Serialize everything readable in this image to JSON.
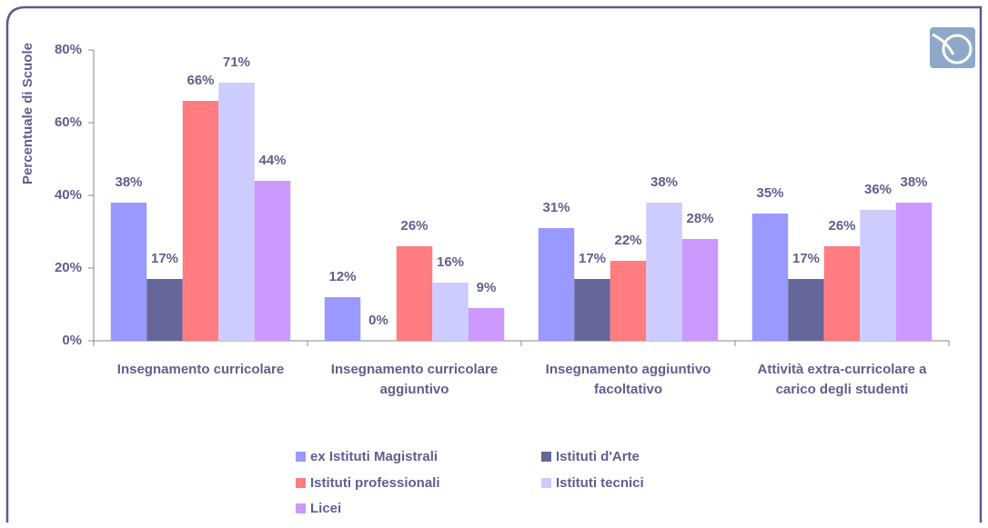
{
  "chart_data": {
    "type": "bar",
    "y_label": "Percentuale di Scuole",
    "categories": [
      "Insegnamento curricolare",
      "Insegnamento curricolare aggiuntivo",
      "Insegnamento aggiuntivo facoltativo",
      "Attività extra-curricolare a carico degli studenti"
    ],
    "series": [
      {
        "name": "ex Istituti Magistrali",
        "color": "#9999ff",
        "values": [
          38,
          12,
          31,
          35
        ],
        "value_labels": [
          "38%",
          "12%",
          "31%",
          "35%"
        ]
      },
      {
        "name": "Istituti d'Arte",
        "color": "#666699",
        "values": [
          17,
          0,
          17,
          17
        ],
        "value_labels": [
          "17%",
          "0%",
          "17%",
          "17%"
        ]
      },
      {
        "name": "Istituti professionali",
        "color": "#ff7c80",
        "values": [
          66,
          26,
          22,
          26
        ],
        "value_labels": [
          "66%",
          "26%",
          "22%",
          "26%"
        ]
      },
      {
        "name": "Istituti tecnici",
        "color": "#ccccff",
        "values": [
          71,
          16,
          38,
          36
        ],
        "value_labels": [
          "71%",
          "16%",
          "38%",
          "36%"
        ]
      },
      {
        "name": "Licei",
        "color": "#cc99ff",
        "values": [
          44,
          9,
          28,
          38
        ],
        "value_labels": [
          "44%",
          "9%",
          "28%",
          "38%"
        ]
      }
    ],
    "ylim": [
      0,
      80
    ],
    "yticks": [
      {
        "value": 0,
        "label": "0%"
      },
      {
        "value": 20,
        "label": "20%"
      },
      {
        "value": 40,
        "label": "40%"
      },
      {
        "value": 60,
        "label": "60%"
      },
      {
        "value": 80,
        "label": "80%"
      }
    ],
    "grid": false,
    "legend": "bottom"
  }
}
